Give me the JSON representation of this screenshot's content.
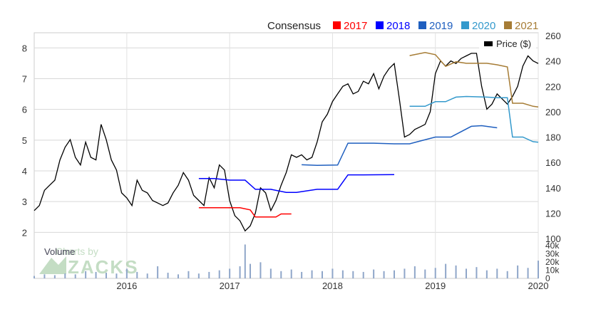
{
  "chart_data": {
    "type": "line",
    "legend": {
      "placement": "top",
      "title": "Consensus",
      "items": [
        {
          "label": "2017",
          "color": "#ff0000"
        },
        {
          "label": "2018",
          "color": "#0000ff"
        },
        {
          "label": "2019",
          "color": "#1f5fbf"
        },
        {
          "label": "2020",
          "color": "#3399cc"
        },
        {
          "label": "2021",
          "color": "#a67c35"
        }
      ]
    },
    "price_label": "Price ($)",
    "volume_label": "Volume",
    "watermark": "Charts by ZACKS",
    "left_axis": {
      "ticks": [
        "2",
        "3",
        "4",
        "5",
        "6",
        "7",
        "8"
      ],
      "ylim": [
        1.8,
        8.4
      ]
    },
    "right_axis": {
      "ticks": [
        "100",
        "120",
        "140",
        "160",
        "180",
        "200",
        "220",
        "240",
        "260"
      ],
      "ylim": [
        100,
        260
      ]
    },
    "volume_axis": {
      "ticks": [
        "0",
        "10k",
        "20k",
        "30k",
        "40k"
      ],
      "ylim": [
        0,
        45000
      ]
    },
    "x_axis": {
      "ticks": [
        "2016",
        "2017",
        "2018",
        "2019",
        "2020"
      ],
      "xlim": [
        2015.1,
        2020.0
      ]
    },
    "grid": true,
    "series": [
      {
        "name": "Price ($)",
        "axis": "price",
        "color": "#000000",
        "x": [
          2015.1,
          2015.15,
          2015.2,
          2015.25,
          2015.3,
          2015.35,
          2015.4,
          2015.45,
          2015.5,
          2015.55,
          2015.6,
          2015.65,
          2015.7,
          2015.75,
          2015.8,
          2015.85,
          2015.9,
          2015.95,
          2016.0,
          2016.05,
          2016.1,
          2016.15,
          2016.2,
          2016.25,
          2016.3,
          2016.35,
          2016.4,
          2016.45,
          2016.5,
          2016.55,
          2016.6,
          2016.65,
          2016.7,
          2016.75,
          2016.8,
          2016.85,
          2016.9,
          2016.95,
          2017.0,
          2017.05,
          2017.1,
          2017.15,
          2017.2,
          2017.25,
          2017.3,
          2017.35,
          2017.4,
          2017.45,
          2017.5,
          2017.55,
          2017.6,
          2017.65,
          2017.7,
          2017.75,
          2017.8,
          2017.85,
          2017.9,
          2017.95,
          2018.0,
          2018.05,
          2018.1,
          2018.15,
          2018.2,
          2018.25,
          2018.3,
          2018.35,
          2018.4,
          2018.45,
          2018.5,
          2018.55,
          2018.6,
          2018.65,
          2018.7,
          2018.75,
          2018.8,
          2018.85,
          2018.9,
          2018.95,
          2019.0,
          2019.05,
          2019.1,
          2019.15,
          2019.2,
          2019.25,
          2019.3,
          2019.35,
          2019.4,
          2019.45,
          2019.5,
          2019.55,
          2019.6,
          2019.65,
          2019.7,
          2019.75,
          2019.8,
          2019.85,
          2019.9,
          2019.95,
          2020.0
        ],
        "y": [
          122,
          126,
          138,
          142,
          146,
          162,
          172,
          178,
          164,
          158,
          176,
          164,
          162,
          190,
          178,
          162,
          154,
          136,
          132,
          126,
          146,
          138,
          136,
          130,
          128,
          126,
          128,
          136,
          142,
          152,
          146,
          134,
          130,
          126,
          148,
          140,
          158,
          154,
          130,
          118,
          114,
          106,
          110,
          120,
          140,
          136,
          122,
          130,
          142,
          152,
          166,
          164,
          166,
          162,
          164,
          176,
          192,
          198,
          208,
          214,
          220,
          222,
          214,
          216,
          224,
          222,
          230,
          218,
          228,
          234,
          238,
          210,
          180,
          182,
          186,
          188,
          190,
          200,
          230,
          240,
          236,
          240,
          238,
          242,
          244,
          246,
          246,
          220,
          202,
          206,
          214,
          210,
          206,
          212,
          220,
          236,
          244,
          240,
          238
        ]
      },
      {
        "name": "2017",
        "axis": "eps",
        "color": "#ff0000",
        "x": [
          2016.7,
          2016.9,
          2017.1,
          2017.2,
          2017.25,
          2017.32,
          2017.45,
          2017.5,
          2017.6
        ],
        "y": [
          2.8,
          2.8,
          2.8,
          2.73,
          2.5,
          2.5,
          2.5,
          2.6,
          2.6
        ]
      },
      {
        "name": "2018",
        "axis": "eps",
        "color": "#0000ff",
        "x": [
          2016.7,
          2016.85,
          2017.0,
          2017.15,
          2017.25,
          2017.4,
          2017.55,
          2017.65,
          2017.85,
          2017.95,
          2018.05,
          2018.15,
          2018.3,
          2018.6
        ],
        "y": [
          3.75,
          3.75,
          3.7,
          3.7,
          3.4,
          3.4,
          3.3,
          3.3,
          3.4,
          3.4,
          3.4,
          3.87,
          3.87,
          3.88
        ]
      },
      {
        "name": "2019",
        "axis": "eps",
        "color": "#1f5fbf",
        "x": [
          2017.7,
          2017.85,
          2018.05,
          2018.15,
          2018.4,
          2018.6,
          2018.75,
          2018.85,
          2019.0,
          2019.15,
          2019.35,
          2019.45,
          2019.6
        ],
        "y": [
          4.2,
          4.18,
          4.19,
          4.9,
          4.9,
          4.88,
          4.88,
          4.97,
          5.1,
          5.1,
          5.45,
          5.47,
          5.4
        ]
      },
      {
        "name": "2020",
        "axis": "eps",
        "color": "#3399cc",
        "x": [
          2018.75,
          2018.9,
          2019.0,
          2019.1,
          2019.2,
          2019.3,
          2019.5,
          2019.6,
          2019.7,
          2019.75,
          2019.85,
          2019.95,
          2020.0
        ],
        "y": [
          6.1,
          6.1,
          6.25,
          6.25,
          6.4,
          6.42,
          6.4,
          6.38,
          6.38,
          5.1,
          5.1,
          4.95,
          4.93
        ]
      },
      {
        "name": "2021",
        "axis": "eps",
        "color": "#a67c35",
        "x": [
          2018.75,
          2018.9,
          2019.0,
          2019.1,
          2019.2,
          2019.3,
          2019.5,
          2019.6,
          2019.7,
          2019.75,
          2019.85,
          2019.95,
          2020.0
        ],
        "y": [
          7.75,
          7.85,
          7.78,
          7.4,
          7.55,
          7.5,
          7.5,
          7.45,
          7.38,
          6.2,
          6.2,
          6.1,
          6.08
        ]
      }
    ],
    "volume": {
      "x": [
        2015.1,
        2015.2,
        2015.3,
        2015.4,
        2015.5,
        2015.6,
        2015.7,
        2015.8,
        2015.9,
        2016.0,
        2016.1,
        2016.2,
        2016.3,
        2016.4,
        2016.5,
        2016.6,
        2016.7,
        2016.8,
        2016.9,
        2017.0,
        2017.1,
        2017.15,
        2017.2,
        2017.3,
        2017.4,
        2017.5,
        2017.6,
        2017.7,
        2017.8,
        2017.9,
        2018.0,
        2018.1,
        2018.2,
        2018.3,
        2018.4,
        2018.5,
        2018.6,
        2018.7,
        2018.8,
        2018.9,
        2019.0,
        2019.1,
        2019.2,
        2019.3,
        2019.4,
        2019.5,
        2019.6,
        2019.7,
        2019.8,
        2019.9,
        2020.0
      ],
      "y": [
        3000,
        5000,
        4000,
        6000,
        5000,
        9000,
        8000,
        7000,
        6000,
        12000,
        8000,
        6000,
        15000,
        7000,
        5000,
        9000,
        6000,
        8000,
        10000,
        12000,
        15000,
        42000,
        18000,
        20000,
        12000,
        9000,
        11000,
        8000,
        10000,
        9000,
        12000,
        10000,
        9000,
        8000,
        11000,
        9000,
        10000,
        12000,
        15000,
        11000,
        13000,
        18000,
        16000,
        12000,
        14000,
        10000,
        12000,
        9000,
        16000,
        13000,
        22000
      ]
    }
  }
}
